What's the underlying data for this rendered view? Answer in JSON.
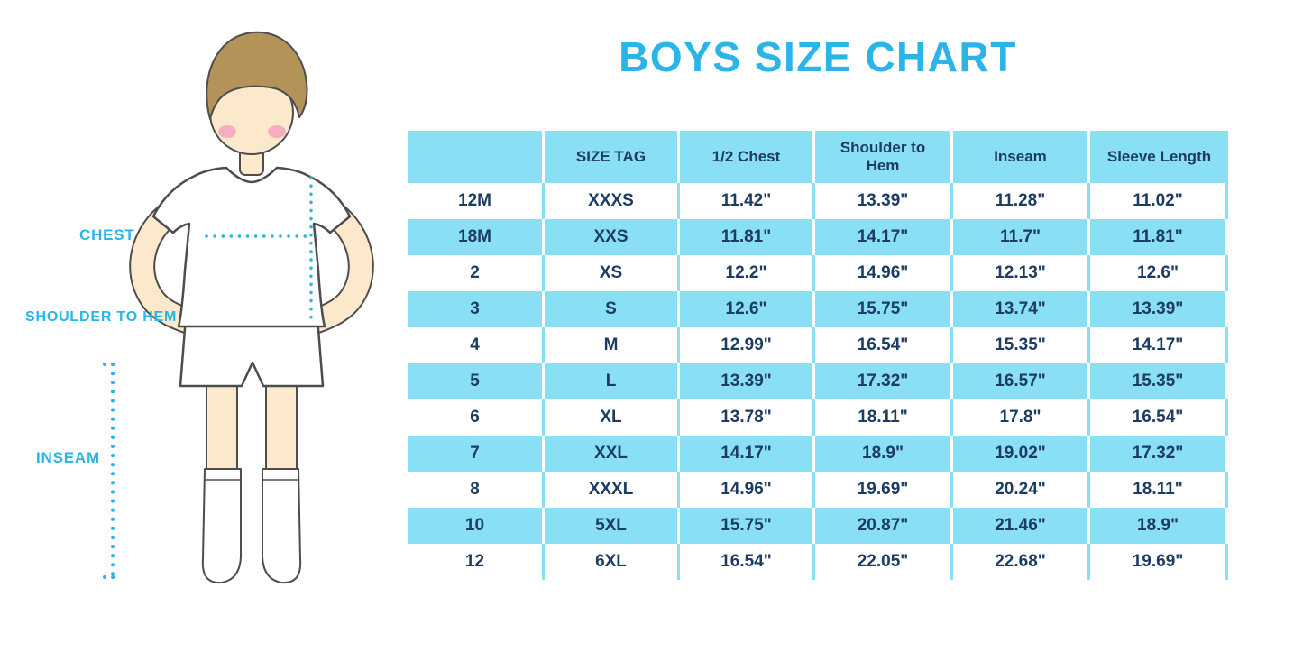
{
  "title": "BOYS SIZE CHART",
  "colors": {
    "accent_cyan": "#2ab4e8",
    "table_fill": "#89dff3",
    "text_navy": "#1d3c62"
  },
  "figure": {
    "labels": {
      "chest": "CHEST",
      "shoulder_to_hem": "SHOULDER TO HEM",
      "inseam": "INSEAM"
    }
  },
  "chart_data": {
    "type": "table",
    "title": "BOYS SIZE CHART",
    "columns": [
      "",
      "SIZE TAG",
      "1/2 Chest",
      "Shoulder to Hem",
      "Inseam",
      "Sleeve Length"
    ],
    "rows": [
      [
        "12M",
        "XXXS",
        "11.42\"",
        "13.39\"",
        "11.28\"",
        "11.02\""
      ],
      [
        "18M",
        "XXS",
        "11.81\"",
        "14.17\"",
        "11.7\"",
        "11.81\""
      ],
      [
        "2",
        "XS",
        "12.2\"",
        "14.96\"",
        "12.13\"",
        "12.6\""
      ],
      [
        "3",
        "S",
        "12.6\"",
        "15.75\"",
        "13.74\"",
        "13.39\""
      ],
      [
        "4",
        "M",
        "12.99\"",
        "16.54\"",
        "15.35\"",
        "14.17\""
      ],
      [
        "5",
        "L",
        "13.39\"",
        "17.32\"",
        "16.57\"",
        "15.35\""
      ],
      [
        "6",
        "XL",
        "13.78\"",
        "18.11\"",
        "17.8\"",
        "16.54\""
      ],
      [
        "7",
        "XXL",
        "14.17\"",
        "18.9\"",
        "19.02\"",
        "17.32\""
      ],
      [
        "8",
        "XXXL",
        "14.96\"",
        "19.69\"",
        "20.24\"",
        "18.11\""
      ],
      [
        "10",
        "5XL",
        "15.75\"",
        "20.87\"",
        "21.46\"",
        "18.9\""
      ],
      [
        "12",
        "6XL",
        "16.54\"",
        "22.05\"",
        "22.68\"",
        "19.69\""
      ]
    ],
    "row_striping": "header and even data rows light cyan #89dff3, others white",
    "legend_position": "none",
    "grid": "vertical separators only"
  }
}
